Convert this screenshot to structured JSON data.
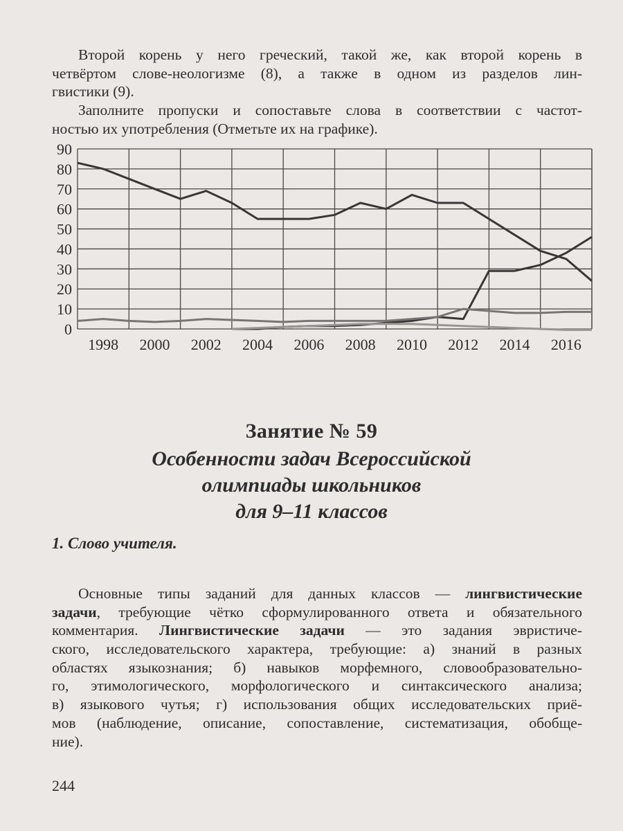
{
  "intro": {
    "p1": [
      "Второй корень у него греческий, такой же, как второй корень в",
      "четвёртом слове-неологизме (8), а также в одном из разделов лин-",
      "гвистики (9)."
    ],
    "p2": [
      "Заполните пропуски и сопоставьте слова в соответствии с частот-",
      "ностью их употребления (Отметьте их на графике)."
    ]
  },
  "chart_data": {
    "type": "line",
    "title": "",
    "xlabel": "",
    "ylabel": "",
    "x": [
      1997,
      1998,
      1999,
      2000,
      2001,
      2002,
      2003,
      2004,
      2005,
      2006,
      2007,
      2008,
      2009,
      2010,
      2011,
      2012,
      2013,
      2014,
      2015,
      2016,
      2017
    ],
    "xlim": [
      1997,
      2017
    ],
    "ylim": [
      0,
      90
    ],
    "yticks": [
      "0",
      "10",
      "20",
      "30",
      "40",
      "50",
      "60",
      "70",
      "80",
      "90"
    ],
    "xticks": [
      "1998",
      "2000",
      "2002",
      "2004",
      "2006",
      "2008",
      "2010",
      "2012",
      "2014",
      "2016"
    ],
    "grid": true,
    "series": [
      {
        "values": [
          83,
          80,
          75,
          70,
          65,
          69,
          63,
          55,
          55,
          55,
          57,
          63,
          60,
          67,
          63,
          63,
          55,
          47,
          39,
          35,
          24
        ],
        "color": "#3a3636"
      },
      {
        "values": [
          null,
          null,
          null,
          null,
          null,
          null,
          0,
          0,
          1,
          1.5,
          1.5,
          2,
          3,
          4,
          6,
          5,
          29,
          29,
          32,
          38,
          46
        ],
        "color": "#3a3636"
      },
      {
        "values": [
          4,
          5,
          4,
          3.5,
          4,
          5,
          4.5,
          4,
          3.5,
          4,
          4,
          4,
          4,
          5,
          6,
          10,
          9,
          8,
          8,
          8.5,
          8.5
        ],
        "color": "#7a7575"
      },
      {
        "values": [
          null,
          null,
          null,
          null,
          null,
          null,
          0,
          0.5,
          1,
          1.5,
          2,
          2.5,
          2.5,
          2.5,
          2,
          1.5,
          1,
          0.5,
          0,
          -0.5,
          -0.5
        ],
        "color": "#9a9595"
      }
    ]
  },
  "lesson": {
    "title": "Занятие № 59",
    "subtitle": [
      "Особенности задач Всероссийской",
      "олимпиады школьников",
      "для 9–11 классов"
    ],
    "section": "1. Слово учителя."
  },
  "body": [
    [
      {
        "t": "Основные типы заданий для данных классов — "
      },
      {
        "t": "лингвистические",
        "b": true
      }
    ],
    [
      {
        "t": "задачи",
        "b": true
      },
      {
        "t": ", требующие чётко сформулированного ответа и обязательного"
      }
    ],
    [
      {
        "t": "комментария. "
      },
      {
        "t": "Лингвистические задачи",
        "b": true
      },
      {
        "t": " — это задания эвристиче-"
      }
    ],
    [
      {
        "t": "ского, исследовательского характера, требующие: а) знаний в разных"
      }
    ],
    [
      {
        "t": "областях языкознания; б) навыков морфемного, словообразователь­но-"
      }
    ],
    [
      {
        "t": "го, этимологического, морфологического и синтаксического анализа;"
      }
    ],
    [
      {
        "t": "в) языкового чутья; г) использования общих исследовательских приё-"
      }
    ],
    [
      {
        "t": "мов (наблюдение, описание, сопоставление, систематизация, обобще-"
      }
    ],
    [
      {
        "t": "ние)."
      }
    ]
  ],
  "page_number": "244"
}
